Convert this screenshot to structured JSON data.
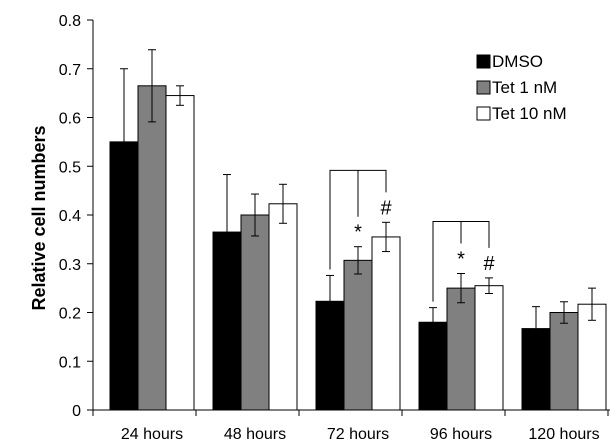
{
  "chart_data": {
    "type": "bar",
    "title": "",
    "xlabel": "",
    "ylabel": "Relative cell numbers",
    "ylim": [
      0,
      0.8
    ],
    "yticks": [
      "0",
      "0.1",
      "0.2",
      "0.3",
      "0.4",
      "0.5",
      "0.6",
      "0.7",
      "0.8"
    ],
    "grid": false,
    "legend_position": "top-right",
    "categories": [
      "24 hours",
      "48 hours",
      "72 hours",
      "96 hours",
      "120 hours"
    ],
    "series": [
      {
        "name": "DMSO",
        "color": "#000000",
        "values": [
          0.55,
          0.365,
          0.223,
          0.18,
          0.167
        ],
        "errors": [
          0.15,
          0.118,
          0.053,
          0.03,
          0.045
        ]
      },
      {
        "name": "Tet 1 nM",
        "color": "#808080",
        "values": [
          0.665,
          0.4,
          0.307,
          0.25,
          0.2
        ],
        "errors": [
          0.074,
          0.043,
          0.028,
          0.03,
          0.022
        ]
      },
      {
        "name": "Tet 10 nM",
        "color": "#ffffff",
        "values": [
          0.645,
          0.423,
          0.355,
          0.255,
          0.217
        ],
        "errors": [
          0.02,
          0.04,
          0.03,
          0.016,
          0.033
        ]
      }
    ],
    "annotations": [
      {
        "category": "72 hours",
        "series": "Tet 1 nM",
        "text": "*"
      },
      {
        "category": "72 hours",
        "series": "Tet 10 nM",
        "text": "#"
      },
      {
        "category": "96 hours",
        "series": "Tet 1 nM",
        "text": "*"
      },
      {
        "category": "96 hours",
        "series": "Tet 10 nM",
        "text": "#"
      }
    ],
    "brackets": [
      "72 hours",
      "96 hours"
    ]
  }
}
